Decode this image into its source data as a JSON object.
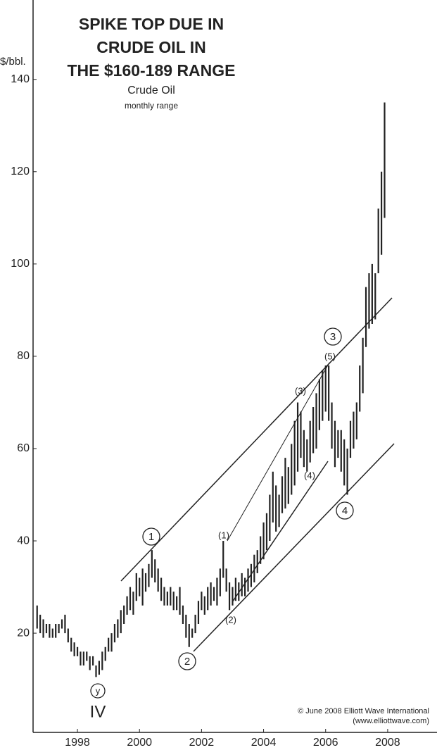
{
  "chart_data": {
    "type": "range",
    "title": [
      "SPIKE TOP DUE IN",
      "CRUDE OIL IN",
      "THE $160-189 RANGE"
    ],
    "subtitle": "Crude Oil",
    "subtitle2": "monthly range",
    "y_label": "$/bbl.",
    "credit": [
      "© June 2008 Elliott Wave International",
      "(www.elliottwave.com)"
    ],
    "wave_labels": [
      "1",
      "2",
      "3",
      "4",
      "y",
      "IV",
      "(1)",
      "(2)",
      "(3)",
      "(4)",
      "(5)"
    ],
    "color": "#222222",
    "xlim": [
      1996.57,
      2009.59
    ],
    "xticks": [
      1998,
      2000,
      2002,
      2004,
      2006,
      2008
    ],
    "ylim": [
      -1.5,
      157.2
    ],
    "yticks": [
      20,
      40,
      60,
      80,
      100,
      120,
      140
    ],
    "x": [
      1996.7,
      1996.8,
      1996.9,
      1997,
      1997.1,
      1997.2,
      1997.3,
      1997.4,
      1997.5,
      1997.6,
      1997.7,
      1997.8,
      1997.9,
      1998,
      1998.1,
      1998.2,
      1998.3,
      1998.4,
      1998.5,
      1998.6,
      1998.7,
      1998.8,
      1998.9,
      1999,
      1999.1,
      1999.2,
      1999.3,
      1999.4,
      1999.5,
      1999.6,
      1999.7,
      1999.8,
      1999.9,
      2000,
      2000.1,
      2000.2,
      2000.3,
      2000.4,
      2000.5,
      2000.6,
      2000.7,
      2000.8,
      2000.9,
      2001,
      2001.1,
      2001.2,
      2001.3,
      2001.4,
      2001.5,
      2001.6,
      2001.7,
      2001.8,
      2001.9,
      2002,
      2002.1,
      2002.2,
      2002.3,
      2002.4,
      2002.5,
      2002.6,
      2002.7,
      2002.8,
      2002.9,
      2003,
      2003.1,
      2003.2,
      2003.3,
      2003.4,
      2003.5,
      2003.6,
      2003.7,
      2003.8,
      2003.9,
      2004,
      2004.1,
      2004.2,
      2004.3,
      2004.4,
      2004.5,
      2004.6,
      2004.7,
      2004.8,
      2004.9,
      2005,
      2005.1,
      2005.2,
      2005.3,
      2005.4,
      2005.5,
      2005.6,
      2005.7,
      2005.8,
      2005.9,
      2006,
      2006.1,
      2006.2,
      2006.3,
      2006.4,
      2006.5,
      2006.6,
      2006.7,
      2006.8,
      2006.9,
      2007,
      2007.1,
      2007.2,
      2007.3,
      2007.4,
      2007.5,
      2007.6,
      2007.7,
      2007.8,
      2007.9
    ],
    "low": [
      21,
      20,
      19,
      20,
      19,
      19,
      19,
      20,
      21,
      20,
      18,
      16,
      15,
      15,
      13,
      13,
      14,
      12,
      13,
      10.5,
      11,
      12,
      14,
      16,
      16,
      18,
      19,
      20,
      22,
      24,
      25,
      24,
      27,
      28,
      26,
      29,
      30,
      32,
      31,
      29,
      27,
      26,
      26,
      26,
      25,
      25,
      24,
      22,
      19,
      17,
      19,
      20,
      22,
      25,
      24,
      25,
      26,
      27,
      26,
      28,
      32,
      29,
      25,
      26,
      27,
      27,
      28,
      28,
      29,
      30,
      31,
      33,
      35,
      36,
      38,
      40,
      44,
      42,
      43,
      46,
      47,
      48,
      50,
      52,
      55,
      58,
      56,
      55,
      57,
      59,
      60,
      64,
      66,
      68,
      66,
      60,
      56,
      58,
      55,
      52,
      50,
      58,
      60,
      62,
      68,
      72,
      82,
      86,
      87,
      88,
      98,
      102,
      110
    ],
    "high": [
      26,
      24,
      23,
      22,
      22,
      21,
      22,
      22,
      23,
      24,
      21,
      19,
      18,
      17,
      16,
      16,
      16,
      15,
      15,
      13,
      14,
      16,
      17,
      19,
      20,
      22,
      23,
      25,
      26,
      28,
      30,
      29,
      33,
      32,
      34,
      33,
      35,
      38,
      36,
      34,
      32,
      30,
      29,
      30,
      29,
      28,
      30,
      26,
      24,
      22,
      21,
      24,
      27,
      29,
      28,
      30,
      31,
      30,
      32,
      34,
      40,
      34,
      31,
      30,
      32,
      31,
      33,
      32,
      34,
      35,
      37,
      38,
      41,
      44,
      46,
      50,
      55,
      52,
      50,
      54,
      58,
      56,
      61,
      66,
      70,
      68,
      64,
      62,
      66,
      69,
      72,
      75,
      77,
      78,
      78,
      70,
      66,
      64,
      64,
      62,
      60,
      66,
      68,
      70,
      78,
      84,
      95,
      98,
      100,
      98,
      112,
      120,
      135
    ]
  }
}
